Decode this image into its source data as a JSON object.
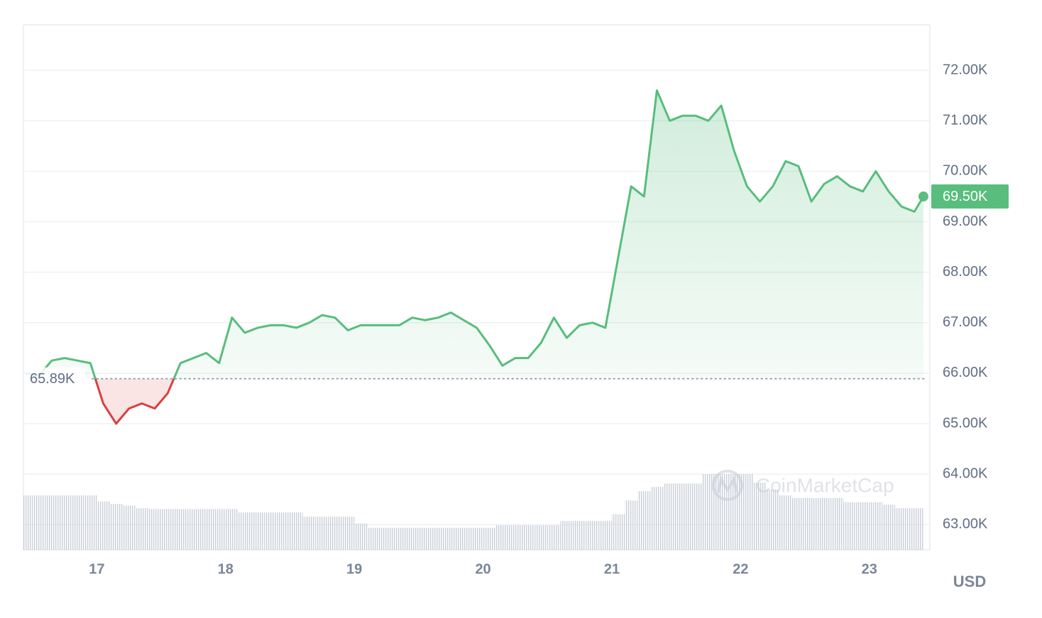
{
  "chart_data": {
    "type": "line",
    "x": [
      16.45,
      16.55,
      16.65,
      16.75,
      16.85,
      16.95,
      17.05,
      17.15,
      17.25,
      17.35,
      17.45,
      17.55,
      17.65,
      17.75,
      17.85,
      17.95,
      18.05,
      18.15,
      18.25,
      18.35,
      18.45,
      18.55,
      18.65,
      18.75,
      18.85,
      18.95,
      19.05,
      19.15,
      19.25,
      19.35,
      19.45,
      19.55,
      19.65,
      19.75,
      19.85,
      19.95,
      20.05,
      20.15,
      20.25,
      20.35,
      20.45,
      20.55,
      20.65,
      20.75,
      20.85,
      20.95,
      21.05,
      21.15,
      21.25,
      21.35,
      21.45,
      21.55,
      21.65,
      21.75,
      21.85,
      21.95,
      22.05,
      22.15,
      22.25,
      22.35,
      22.45,
      22.55,
      22.65,
      22.75,
      22.85,
      22.95,
      23.05,
      23.15,
      23.25,
      23.35,
      23.42
    ],
    "values": [
      66000,
      65950,
      66250,
      66300,
      66250,
      66200,
      65400,
      65000,
      65300,
      65400,
      65300,
      65600,
      66200,
      66300,
      66400,
      66200,
      67100,
      66800,
      66900,
      66950,
      66950,
      66900,
      67000,
      67150,
      67100,
      66850,
      66950,
      66950,
      66950,
      66950,
      67100,
      67050,
      67100,
      67200,
      67050,
      66900,
      66550,
      66150,
      66300,
      66300,
      66600,
      67100,
      66700,
      66950,
      67000,
      66900,
      68300,
      69700,
      69500,
      71600,
      71000,
      71100,
      71100,
      71000,
      71300,
      70400,
      69700,
      69400,
      69700,
      70200,
      70100,
      69400,
      69750,
      69900,
      69700,
      69600,
      70000,
      69600,
      69300,
      69200,
      69500
    ],
    "volume": [
      64,
      64,
      64,
      64,
      64,
      64,
      57,
      54,
      52,
      49,
      48,
      48,
      48,
      48,
      48,
      48,
      48,
      44,
      44,
      44,
      44,
      44,
      39,
      39,
      39,
      39,
      31,
      26,
      26,
      26,
      26,
      26,
      26,
      26,
      26,
      26,
      26,
      29,
      29,
      29,
      29,
      29,
      34,
      34,
      34,
      34,
      42,
      58,
      69,
      74,
      78,
      78,
      78,
      89,
      89,
      89,
      89,
      79,
      71,
      64,
      61,
      61,
      61,
      61,
      56,
      56,
      56,
      53,
      49,
      49,
      49
    ],
    "y2lim": [
      0,
      100
    ],
    "color": "#58bd7d",
    "down_color": "#d9403f",
    "volume_color": "#c9ced8",
    "xlim": [
      16.43,
      23.47
    ],
    "xticks": [
      17,
      18,
      19,
      20,
      21,
      22,
      23
    ],
    "ylim": [
      62500,
      72900
    ],
    "yticks": [
      {
        "value": 63000,
        "label": "63.00K"
      },
      {
        "value": 64000,
        "label": "64.00K"
      },
      {
        "value": 65000,
        "label": "65.00K"
      },
      {
        "value": 66000,
        "label": "66.00K"
      },
      {
        "value": 67000,
        "label": "67.00K"
      },
      {
        "value": 68000,
        "label": "68.00K"
      },
      {
        "value": 69000,
        "label": "69.00K"
      },
      {
        "value": 70000,
        "label": "70.00K"
      },
      {
        "value": 71000,
        "label": "71.00K"
      },
      {
        "value": 72000,
        "label": "72.00K"
      }
    ],
    "baseline": {
      "value": 65890,
      "label": "65.89K"
    },
    "last_price": {
      "value": 69500,
      "label": "69.50K"
    },
    "y_axis_label": "USD",
    "watermark": "CoinMarketCap",
    "grid": true
  }
}
